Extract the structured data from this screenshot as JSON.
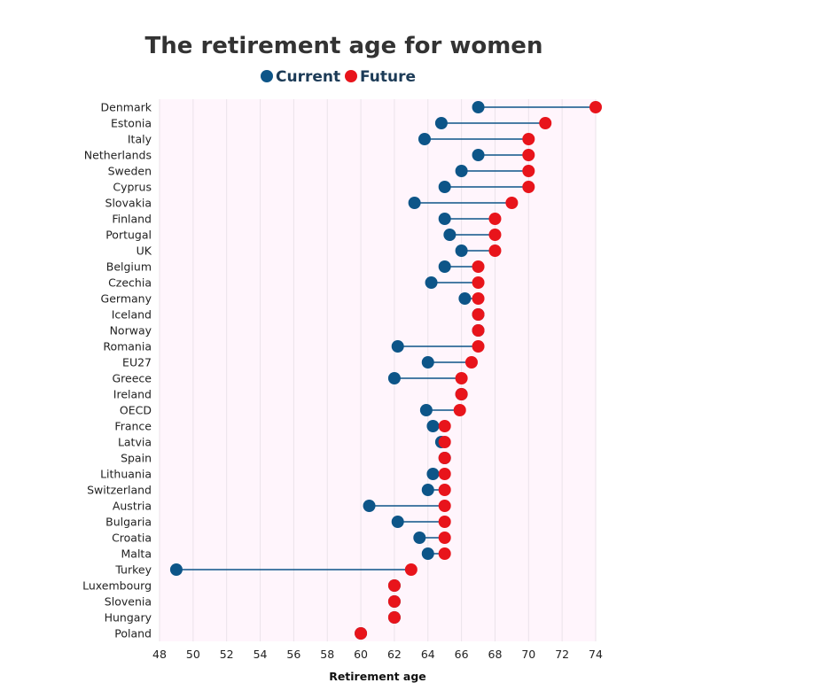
{
  "chart_data": {
    "type": "dumbbell",
    "title": "The retirement age for women",
    "xlabel": "Retirement age",
    "ylabel": "",
    "xlim": [
      48,
      74
    ],
    "xticks": [
      48,
      50,
      52,
      54,
      56,
      58,
      60,
      62,
      64,
      66,
      68,
      70,
      72,
      74
    ],
    "legend_position": "top",
    "grid": true,
    "colors": {
      "current": "#0d5588",
      "future": "#e8141b",
      "plot_bg": "#fff5fc",
      "connector": "#0d5588"
    },
    "series": [
      {
        "name": "Current",
        "key": "current"
      },
      {
        "name": "Future",
        "key": "future"
      }
    ],
    "categories": [
      "Denmark",
      "Estonia",
      "Italy",
      "Netherlands",
      "Sweden",
      "Cyprus",
      "Slovakia",
      "Finland",
      "Portugal",
      "UK",
      "Belgium",
      "Czechia",
      "Germany",
      "Iceland",
      "Norway",
      "Romania",
      "EU27",
      "Greece",
      "Ireland",
      "OECD",
      "France",
      "Latvia",
      "Spain",
      "Lithuania",
      "Switzerland",
      "Austria",
      "Bulgaria",
      "Croatia",
      "Malta",
      "Turkey",
      "Luxembourg",
      "Slovenia",
      "Hungary",
      "Poland"
    ],
    "current": [
      67,
      64.8,
      63.8,
      67,
      66,
      65,
      63.2,
      65,
      65.3,
      66,
      65,
      64.2,
      66.2,
      67,
      67,
      62.2,
      64,
      62,
      66,
      63.9,
      64.3,
      64.8,
      65,
      64.3,
      64,
      60.5,
      62.2,
      63.5,
      64,
      49,
      62,
      62,
      62,
      60
    ],
    "future": [
      74,
      71,
      70,
      70,
      70,
      70,
      69,
      68,
      68,
      68,
      67,
      67,
      67,
      67,
      67,
      67,
      66.6,
      66,
      66,
      65.9,
      65,
      65,
      65,
      65,
      65,
      65,
      65,
      65,
      65,
      63,
      62,
      62,
      62,
      60
    ]
  }
}
